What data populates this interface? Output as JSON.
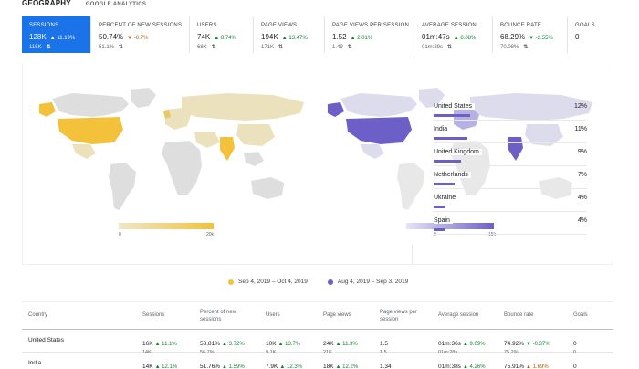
{
  "header": {
    "title": "GEOGRAPHY",
    "subtitle": "GOOGLE ANALYTICS"
  },
  "metrics": [
    {
      "label": "SESSIONS",
      "value": "128K",
      "delta": "11.19%",
      "dir": "up",
      "prev": "115K",
      "active": true
    },
    {
      "label": "PERCENT OF NEW SESSIONS",
      "value": "50.74%",
      "delta": "-0.7%",
      "dir": "down",
      "prev": "51.1%"
    },
    {
      "label": "USERS",
      "value": "74K",
      "delta": "8.74%",
      "dir": "up",
      "prev": "68K"
    },
    {
      "label": "PAGE VIEWS",
      "value": "194K",
      "delta": "13.47%",
      "dir": "up",
      "prev": "171K"
    },
    {
      "label": "PAGE VIEWS PER SESSION",
      "value": "1.52",
      "delta": "2.01%",
      "dir": "up",
      "prev": "1.49"
    },
    {
      "label": "AVERAGE SESSION",
      "value": "01m:47s",
      "delta": "8.08%",
      "dir": "up",
      "prev": "01m:39s"
    },
    {
      "label": "BOUNCE RATE",
      "value": "68.29%",
      "delta": "-2.55%",
      "dir": "up",
      "prev": "70.08%"
    },
    {
      "label": "GOALS",
      "value": "0",
      "delta": "",
      "dir": "",
      "prev": ""
    }
  ],
  "scales": {
    "left_min": "0",
    "left_max": "20k",
    "right_min": "0",
    "right_max": "15k"
  },
  "countries": [
    {
      "name": "United States",
      "value": "12%",
      "share": 12
    },
    {
      "name": "India",
      "value": "11%",
      "share": 11
    },
    {
      "name": "United Kingdom",
      "value": "9%",
      "share": 9
    },
    {
      "name": "Netherlands",
      "value": "7%",
      "share": 7
    },
    {
      "name": "Ukraine",
      "value": "4%",
      "share": 4
    },
    {
      "name": "Spain",
      "value": "4%",
      "share": 4
    }
  ],
  "legend": {
    "current": "Sep 4, 2019 – Oct 4, 2019",
    "previous": "Aug 4, 2019 – Sep 3, 2019",
    "current_color": "#f3c13a",
    "previous_color": "#6d5fc8"
  },
  "table": {
    "headers": [
      "Country",
      "Sessions",
      "Percent of new sessions",
      "Users",
      "Page views",
      "Page views per session",
      "Average session",
      "Bounce rate",
      "Goals"
    ],
    "rows": [
      {
        "country": "United States",
        "cells": [
          {
            "cur": "16K",
            "delta": "▲ 11.1%",
            "dir": "up",
            "prev": "14K"
          },
          {
            "cur": "58.81%",
            "delta": "▲ 3.72%",
            "dir": "up",
            "prev": "56.7%"
          },
          {
            "cur": "10K",
            "delta": "▲ 13.7%",
            "dir": "up",
            "prev": "9.1K"
          },
          {
            "cur": "24K",
            "delta": "▲ 11.3%",
            "dir": "up",
            "prev": "21K"
          },
          {
            "cur": "1.5",
            "delta": "",
            "dir": "",
            "prev": "1.5"
          },
          {
            "cur": "01m:36s",
            "delta": "▲ 9.09%",
            "dir": "up",
            "prev": "01m:28s"
          },
          {
            "cur": "74.92%",
            "delta": "▼ -0.37%",
            "dir": "up",
            "prev": "75.2%"
          },
          {
            "cur": "0",
            "delta": "",
            "dir": "",
            "prev": "0"
          }
        ]
      },
      {
        "country": "India",
        "cells": [
          {
            "cur": "14K",
            "delta": "▲ 12.1%",
            "dir": "up",
            "prev": "12K"
          },
          {
            "cur": "51.76%",
            "delta": "▲ 1.59%",
            "dir": "up",
            "prev": "50.95%"
          },
          {
            "cur": "7.9K",
            "delta": "▲ 12.3%",
            "dir": "up",
            "prev": "7K"
          },
          {
            "cur": "18K",
            "delta": "▲ 12.2%",
            "dir": "up",
            "prev": "16K"
          },
          {
            "cur": "1.34",
            "delta": "",
            "dir": "",
            "prev": "1.34"
          },
          {
            "cur": "01m:38s",
            "delta": "▲ 4.26%",
            "dir": "up",
            "prev": "01m:34s"
          },
          {
            "cur": "75.91%",
            "delta": "▲ 1.69%",
            "dir": "down",
            "prev": "74.65%"
          },
          {
            "cur": "0",
            "delta": "",
            "dir": "",
            "prev": "0"
          }
        ]
      }
    ]
  }
}
